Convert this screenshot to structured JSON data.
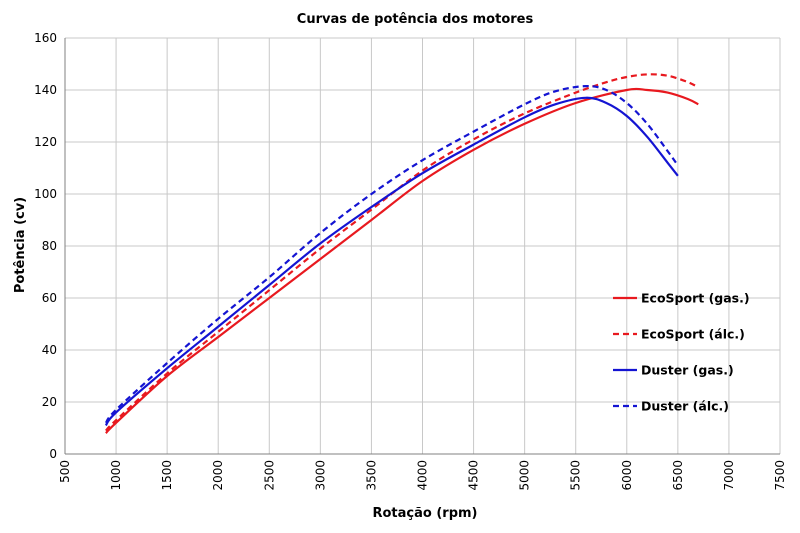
{
  "chart_data": {
    "type": "line",
    "title": "Curvas de potência dos motores",
    "xlabel": "Rotação (rpm)",
    "ylabel": "Potência (cv)",
    "xlim": [
      500,
      7500
    ],
    "ylim": [
      0,
      160
    ],
    "xticks": [
      500,
      1000,
      1500,
      2000,
      2500,
      3000,
      3500,
      4000,
      4500,
      5000,
      5500,
      6000,
      6500,
      7000,
      7500
    ],
    "yticks": [
      0,
      20,
      40,
      60,
      80,
      100,
      120,
      140,
      160
    ],
    "grid": true,
    "legend_position": "right",
    "series": [
      {
        "name": "EcoSport (gas.)",
        "color": "#e8191f",
        "dash": "solid",
        "x": [
          900,
          1000,
          1500,
          2000,
          2500,
          3000,
          3500,
          4000,
          4500,
          5000,
          5500,
          6000,
          6200,
          6400,
          6600,
          6700
        ],
        "y": [
          8,
          12,
          30,
          45,
          60,
          75,
          90,
          105,
          117,
          127,
          135,
          140,
          140,
          139,
          136.5,
          134.5
        ]
      },
      {
        "name": "EcoSport (álc.)",
        "color": "#e8191f",
        "dash": "dashed",
        "x": [
          900,
          1000,
          1500,
          2000,
          2500,
          3000,
          3500,
          4000,
          4500,
          5000,
          5500,
          5800,
          6000,
          6200,
          6400,
          6600,
          6700
        ],
        "y": [
          9,
          13,
          31,
          47,
          63,
          79,
          94,
          109,
          121,
          131,
          139,
          143,
          145,
          146,
          145.5,
          143,
          141
        ]
      },
      {
        "name": "Duster (gas.)",
        "color": "#1414d2",
        "dash": "solid",
        "x": [
          900,
          1000,
          1500,
          2000,
          2500,
          3000,
          3500,
          4000,
          4500,
          5000,
          5300,
          5600,
          5800,
          6000,
          6200,
          6400,
          6500
        ],
        "y": [
          11,
          16,
          33,
          49,
          65,
          81,
          95,
          108,
          119,
          129.5,
          134.5,
          137,
          135,
          130,
          122,
          112,
          107
        ]
      },
      {
        "name": "Duster (álc.)",
        "color": "#1414d2",
        "dash": "dashed",
        "x": [
          900,
          1000,
          1500,
          2000,
          2500,
          3000,
          3500,
          4000,
          4500,
          5000,
          5300,
          5600,
          5800,
          6000,
          6200,
          6400,
          6500
        ],
        "y": [
          12,
          17,
          35,
          52,
          68,
          85,
          100,
          113,
          124,
          134.5,
          139.5,
          141.5,
          140,
          135,
          127,
          116.5,
          111
        ]
      }
    ]
  }
}
